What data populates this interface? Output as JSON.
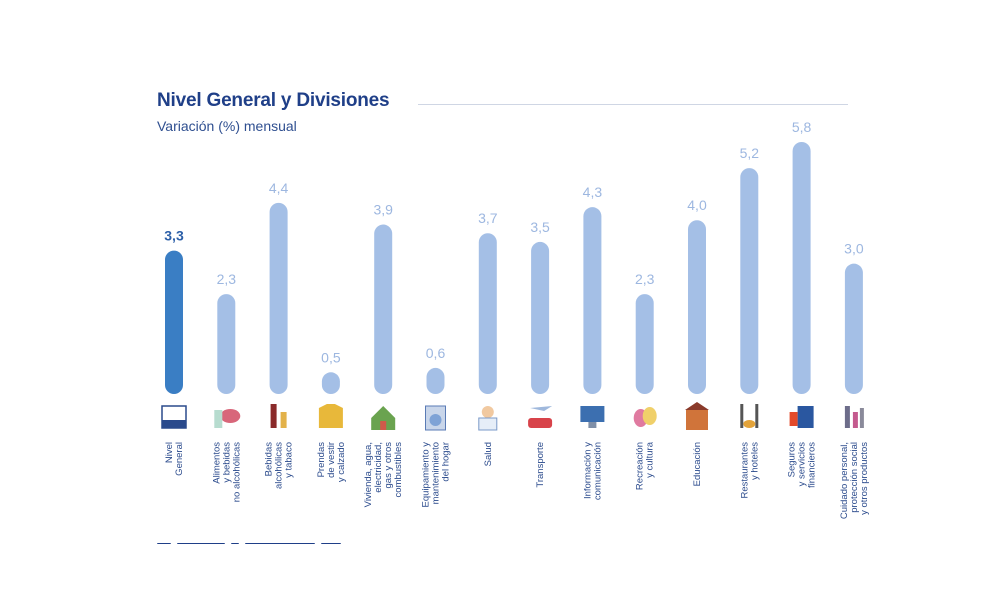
{
  "chart_data": {
    "type": "bar",
    "title": "Nivel General y Divisiones",
    "subtitle": "Variación (%) mensual",
    "ylim": [
      0,
      5.8
    ],
    "categories": [
      {
        "key": "nivel-general",
        "label": "Nivel\nGeneral",
        "value": 3.3,
        "display": "3,3",
        "highlight": true,
        "icon": "ipc-logo-icon"
      },
      {
        "key": "alimentos",
        "label": "Alimentos\ny bebidas\nno alcohólicas",
        "value": 2.3,
        "display": "2,3",
        "highlight": false,
        "icon": "food-icon"
      },
      {
        "key": "bebidas-alcoholicas",
        "label": "Bebidas\nalcohólicas\ny tabaco",
        "value": 4.4,
        "display": "4,4",
        "highlight": false,
        "icon": "wine-bottle-icon"
      },
      {
        "key": "prendas",
        "label": "Prendas\nde vestir\ny calzado",
        "value": 0.5,
        "display": "0,5",
        "highlight": false,
        "icon": "jacket-icon"
      },
      {
        "key": "vivienda",
        "label": "Vivienda, agua,\nelectricidad,\ngas y otros\ncombustibles",
        "value": 3.9,
        "display": "3,9",
        "highlight": false,
        "icon": "house-icon"
      },
      {
        "key": "equipamiento",
        "label": "Equipamiento y\nmantenimiento\ndel hogar",
        "value": 0.6,
        "display": "0,6",
        "highlight": false,
        "icon": "washing-machine-icon"
      },
      {
        "key": "salud",
        "label": "Salud",
        "value": 3.7,
        "display": "3,7",
        "highlight": false,
        "icon": "doctor-icon"
      },
      {
        "key": "transporte",
        "label": "Transporte",
        "value": 3.5,
        "display": "3,5",
        "highlight": false,
        "icon": "car-plane-icon"
      },
      {
        "key": "informacion",
        "label": "Información y\ncomunicación",
        "value": 4.3,
        "display": "4,3",
        "highlight": false,
        "icon": "computer-icon"
      },
      {
        "key": "recreacion",
        "label": "Recreación\ny cultura",
        "value": 2.3,
        "display": "2,3",
        "highlight": false,
        "icon": "theater-masks-icon"
      },
      {
        "key": "educacion",
        "label": "Educación",
        "value": 4.0,
        "display": "4,0",
        "highlight": false,
        "icon": "school-icon"
      },
      {
        "key": "restaurantes",
        "label": "Restaurantes\ny hoteles",
        "value": 5.2,
        "display": "5,2",
        "highlight": false,
        "icon": "cutlery-icon"
      },
      {
        "key": "seguros",
        "label": "Seguros\ny servicios\nfinancieros",
        "value": 5.8,
        "display": "5,8",
        "highlight": false,
        "icon": "bank-icon"
      },
      {
        "key": "cuidado-personal",
        "label": "Cuidado personal,\nprotección social\ny otros productos",
        "value": 3.0,
        "display": "3,0",
        "highlight": false,
        "icon": "cosmetics-icon"
      }
    ]
  },
  "colors": {
    "title": "#1f3f88",
    "bar": "#a4bfe6",
    "bar_highlight": "#3a7ec4",
    "value_label": "#9db7e0",
    "value_label_highlight": "#2c5fa8",
    "category_label": "#2a4a8c"
  }
}
